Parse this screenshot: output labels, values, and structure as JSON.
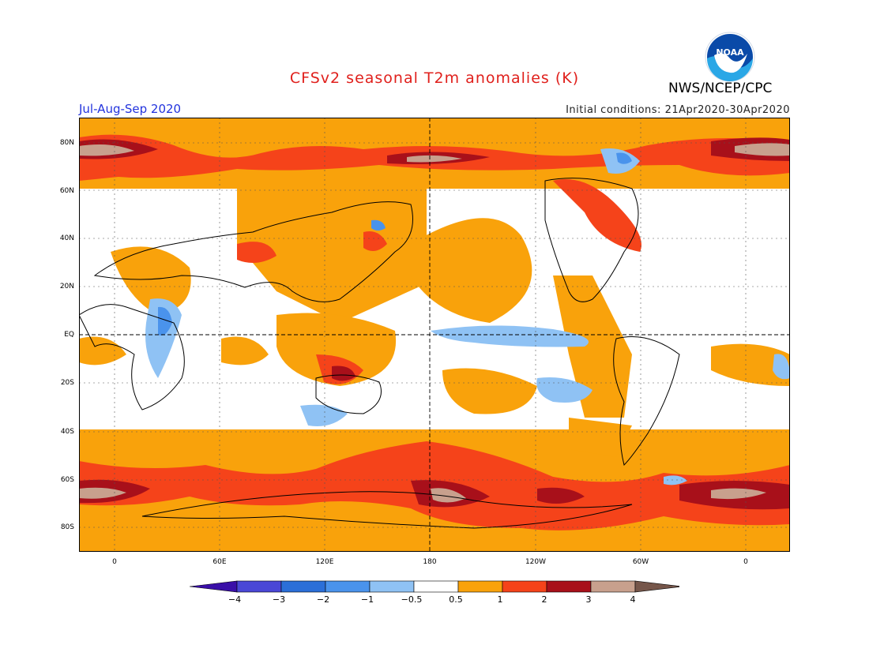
{
  "header": {
    "title": "CFSv2 seasonal T2m anomalies (K)",
    "org": "NWS/NCEP/CPC",
    "period": "Jul-Aug-Sep 2020",
    "initial_conditions": "Initial conditions: 21Apr2020-30Apr2020",
    "logo_text": "NOAA"
  },
  "axes": {
    "lat_labels": [
      "80N",
      "60N",
      "40N",
      "20N",
      "EQ",
      "20S",
      "40S",
      "60S",
      "80S"
    ],
    "lon_labels": [
      "0",
      "60E",
      "120E",
      "180",
      "120W",
      "60W",
      "0"
    ]
  },
  "colorbar": {
    "labels": [
      "−4",
      "−3",
      "−2",
      "−1",
      "−0.5",
      "0.5",
      "1",
      "2",
      "3",
      "4"
    ],
    "colors": [
      "#3a0fa8",
      "#4a47d6",
      "#2b6fd8",
      "#4a93ec",
      "#8fc2f4",
      "#ffffff",
      "#f9a20b",
      "#f5431a",
      "#a8101a",
      "#c8a08d",
      "#76564a"
    ]
  }
}
